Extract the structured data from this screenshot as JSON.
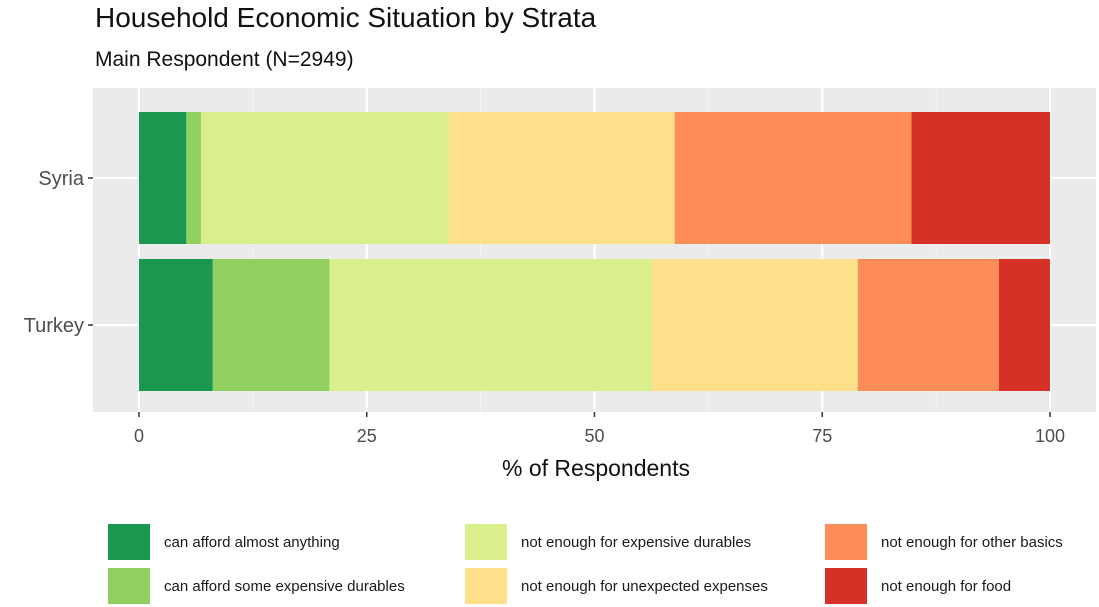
{
  "chart_data": {
    "type": "bar",
    "orientation": "horizontal",
    "stacked": true,
    "title": "Household Economic Situation by Strata",
    "subtitle": "Main Respondent (N=2949)",
    "xlabel": "% of Respondents",
    "ylabel": "",
    "xlim": [
      0,
      100
    ],
    "x_ticks": [
      "0",
      "25",
      "50",
      "75",
      "100"
    ],
    "categories": [
      "Syria",
      "Turkey"
    ],
    "series": [
      {
        "name": "can afford almost anything",
        "color": "#1a9850",
        "values": [
          5.2,
          8.1
        ]
      },
      {
        "name": "can afford some expensive durables",
        "color": "#91cf60",
        "values": [
          1.6,
          12.8
        ]
      },
      {
        "name": "not enough for expensive durables",
        "color": "#d9ef8b",
        "values": [
          27.2,
          35.4
        ]
      },
      {
        "name": "not enough for unexpected expenses",
        "color": "#fee08b",
        "values": [
          24.8,
          22.6
        ]
      },
      {
        "name": "not enough for other basics",
        "color": "#fc8d59",
        "values": [
          26.0,
          15.5
        ]
      },
      {
        "name": "not enough for food",
        "color": "#d73027",
        "values": [
          15.2,
          5.6
        ]
      }
    ],
    "grid": true,
    "legend_position": "bottom"
  }
}
